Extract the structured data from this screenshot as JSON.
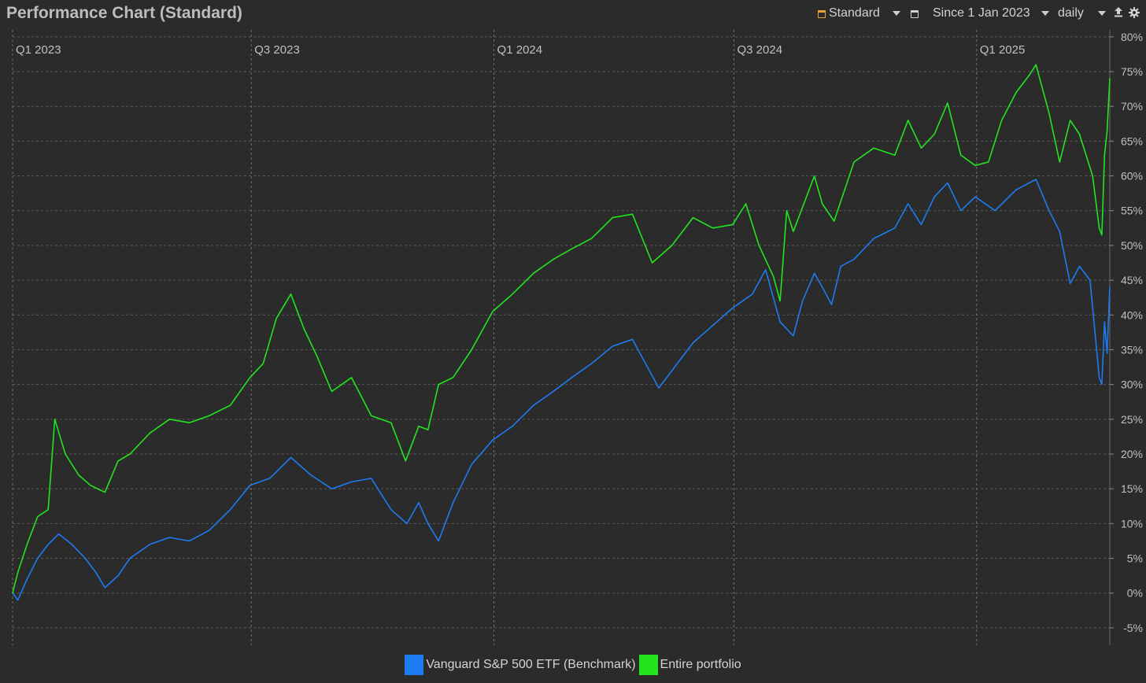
{
  "header": {
    "title": "Performance Chart (Standard)",
    "view_label": "Standard",
    "period_label": "Since 1 Jan 2023",
    "interval_label": "daily",
    "icons": [
      "view-icon",
      "calendar-icon",
      "export-icon",
      "gear-icon"
    ]
  },
  "colors": {
    "background": "#2b2b2b",
    "grid": "#5a5a5a",
    "benchmark": "#1e7bf0",
    "portfolio": "#22e51d",
    "view_icon": "#f0a030"
  },
  "chart_data": {
    "type": "line",
    "title": "Performance Chart (Standard)",
    "xlabel": "",
    "ylabel": "",
    "ylim": [
      -7.5,
      81
    ],
    "xlim": [
      "2023-01-01",
      "2025-04-12"
    ],
    "y_ticks": [
      -5,
      0,
      5,
      10,
      15,
      20,
      25,
      30,
      35,
      40,
      45,
      50,
      55,
      60,
      65,
      70,
      75,
      80
    ],
    "y_tick_labels": [
      "-5%",
      "0%",
      "5%",
      "10%",
      "15%",
      "20%",
      "25%",
      "30%",
      "35%",
      "40%",
      "45%",
      "50%",
      "55%",
      "60%",
      "65%",
      "70%",
      "75%",
      "80%"
    ],
    "x_ticks": [
      {
        "date": "2023-01-01",
        "label": "Q1 2023"
      },
      {
        "date": "2023-07-01",
        "label": "Q3 2023"
      },
      {
        "date": "2024-01-01",
        "label": "Q1 2024"
      },
      {
        "date": "2024-07-01",
        "label": "Q3 2024"
      },
      {
        "date": "2025-01-01",
        "label": "Q1 2025"
      }
    ],
    "grid": true,
    "legend_position": "bottom-center",
    "series": [
      {
        "name": "Vanguard S&P 500 ETF (Benchmark)",
        "points": [
          [
            "2023-01-01",
            0
          ],
          [
            "2023-01-05",
            -1
          ],
          [
            "2023-01-12",
            2
          ],
          [
            "2023-01-20",
            5
          ],
          [
            "2023-01-28",
            7
          ],
          [
            "2023-02-05",
            8.5
          ],
          [
            "2023-02-15",
            7
          ],
          [
            "2023-02-25",
            5
          ],
          [
            "2023-03-05",
            3
          ],
          [
            "2023-03-12",
            0.8
          ],
          [
            "2023-03-22",
            2.5
          ],
          [
            "2023-03-31",
            5
          ],
          [
            "2023-04-15",
            7
          ],
          [
            "2023-04-30",
            8
          ],
          [
            "2023-05-15",
            7.5
          ],
          [
            "2023-05-30",
            9
          ],
          [
            "2023-06-15",
            12
          ],
          [
            "2023-06-30",
            15.5
          ],
          [
            "2023-07-15",
            16.5
          ],
          [
            "2023-07-31",
            19.5
          ],
          [
            "2023-08-15",
            17
          ],
          [
            "2023-08-31",
            15
          ],
          [
            "2023-09-15",
            16
          ],
          [
            "2023-09-30",
            16.5
          ],
          [
            "2023-10-15",
            12
          ],
          [
            "2023-10-27",
            10
          ],
          [
            "2023-11-05",
            13
          ],
          [
            "2023-11-12",
            10
          ],
          [
            "2023-11-20",
            7.5
          ],
          [
            "2023-12-01",
            13
          ],
          [
            "2023-12-15",
            18.5
          ],
          [
            "2023-12-31",
            22
          ],
          [
            "2024-01-15",
            24
          ],
          [
            "2024-01-31",
            27
          ],
          [
            "2024-02-15",
            29
          ],
          [
            "2024-02-29",
            31
          ],
          [
            "2024-03-15",
            33
          ],
          [
            "2024-03-31",
            35.5
          ],
          [
            "2024-04-15",
            36.5
          ],
          [
            "2024-04-25",
            33
          ],
          [
            "2024-05-05",
            29.5
          ],
          [
            "2024-05-15",
            32
          ],
          [
            "2024-05-31",
            36
          ],
          [
            "2024-06-15",
            38.5
          ],
          [
            "2024-06-30",
            41
          ],
          [
            "2024-07-15",
            43
          ],
          [
            "2024-07-25",
            46.5
          ],
          [
            "2024-08-05",
            39
          ],
          [
            "2024-08-15",
            37
          ],
          [
            "2024-08-22",
            42
          ],
          [
            "2024-08-31",
            46
          ],
          [
            "2024-09-06",
            44
          ],
          [
            "2024-09-13",
            41.5
          ],
          [
            "2024-09-20",
            47
          ],
          [
            "2024-09-30",
            48
          ],
          [
            "2024-10-15",
            51
          ],
          [
            "2024-10-31",
            52.5
          ],
          [
            "2024-11-10",
            56
          ],
          [
            "2024-11-20",
            53
          ],
          [
            "2024-11-30",
            57
          ],
          [
            "2024-12-10",
            59
          ],
          [
            "2024-12-20",
            55
          ],
          [
            "2024-12-31",
            57
          ],
          [
            "2025-01-15",
            55
          ],
          [
            "2025-01-31",
            58
          ],
          [
            "2025-02-15",
            59.5
          ],
          [
            "2025-02-25",
            55
          ],
          [
            "2025-03-05",
            52
          ],
          [
            "2025-03-13",
            44.5
          ],
          [
            "2025-03-20",
            47
          ],
          [
            "2025-03-28",
            45
          ],
          [
            "2025-04-04",
            31
          ],
          [
            "2025-04-06",
            30
          ],
          [
            "2025-04-08",
            39
          ],
          [
            "2025-04-10",
            34.5
          ],
          [
            "2025-04-12",
            44
          ]
        ]
      },
      {
        "name": "Entire portfolio",
        "points": [
          [
            "2023-01-01",
            0
          ],
          [
            "2023-01-05",
            3
          ],
          [
            "2023-01-12",
            7
          ],
          [
            "2023-01-20",
            11
          ],
          [
            "2023-01-28",
            12
          ],
          [
            "2023-02-02",
            25
          ],
          [
            "2023-02-10",
            20
          ],
          [
            "2023-02-20",
            17
          ],
          [
            "2023-03-01",
            15.5
          ],
          [
            "2023-03-12",
            14.5
          ],
          [
            "2023-03-22",
            19
          ],
          [
            "2023-03-31",
            20
          ],
          [
            "2023-04-15",
            23
          ],
          [
            "2023-04-30",
            25
          ],
          [
            "2023-05-15",
            24.5
          ],
          [
            "2023-05-30",
            25.5
          ],
          [
            "2023-06-15",
            27
          ],
          [
            "2023-06-30",
            31
          ],
          [
            "2023-07-10",
            33
          ],
          [
            "2023-07-20",
            39.5
          ],
          [
            "2023-07-31",
            43
          ],
          [
            "2023-08-10",
            38
          ],
          [
            "2023-08-20",
            34
          ],
          [
            "2023-08-31",
            29
          ],
          [
            "2023-09-15",
            31
          ],
          [
            "2023-09-30",
            25.5
          ],
          [
            "2023-10-15",
            24.5
          ],
          [
            "2023-10-26",
            19
          ],
          [
            "2023-11-05",
            24
          ],
          [
            "2023-11-12",
            23.5
          ],
          [
            "2023-11-20",
            30
          ],
          [
            "2023-12-01",
            31
          ],
          [
            "2023-12-15",
            35
          ],
          [
            "2023-12-31",
            40.5
          ],
          [
            "2024-01-15",
            43
          ],
          [
            "2024-01-31",
            46
          ],
          [
            "2024-02-15",
            48
          ],
          [
            "2024-02-29",
            49.5
          ],
          [
            "2024-03-15",
            51
          ],
          [
            "2024-03-31",
            54
          ],
          [
            "2024-04-15",
            54.5
          ],
          [
            "2024-04-30",
            47.5
          ],
          [
            "2024-05-15",
            50
          ],
          [
            "2024-05-31",
            54
          ],
          [
            "2024-06-15",
            52.5
          ],
          [
            "2024-06-30",
            53
          ],
          [
            "2024-07-10",
            56
          ],
          [
            "2024-07-20",
            50
          ],
          [
            "2024-07-31",
            45.5
          ],
          [
            "2024-08-05",
            42
          ],
          [
            "2024-08-10",
            55
          ],
          [
            "2024-08-15",
            52
          ],
          [
            "2024-08-31",
            60
          ],
          [
            "2024-09-06",
            56
          ],
          [
            "2024-09-15",
            53.5
          ],
          [
            "2024-09-30",
            62
          ],
          [
            "2024-10-15",
            64
          ],
          [
            "2024-10-31",
            63
          ],
          [
            "2024-11-10",
            68
          ],
          [
            "2024-11-20",
            64
          ],
          [
            "2024-11-30",
            66
          ],
          [
            "2024-12-10",
            70.5
          ],
          [
            "2024-12-20",
            63
          ],
          [
            "2024-12-31",
            61.5
          ],
          [
            "2025-01-10",
            62
          ],
          [
            "2025-01-20",
            68
          ],
          [
            "2025-01-31",
            72
          ],
          [
            "2025-02-10",
            74.5
          ],
          [
            "2025-02-15",
            76
          ],
          [
            "2025-02-25",
            69
          ],
          [
            "2025-03-05",
            62
          ],
          [
            "2025-03-13",
            68
          ],
          [
            "2025-03-20",
            66
          ],
          [
            "2025-03-30",
            60
          ],
          [
            "2025-04-04",
            52.5
          ],
          [
            "2025-04-06",
            51.5
          ],
          [
            "2025-04-08",
            63
          ],
          [
            "2025-04-10",
            66.5
          ],
          [
            "2025-04-12",
            74
          ]
        ]
      }
    ]
  }
}
